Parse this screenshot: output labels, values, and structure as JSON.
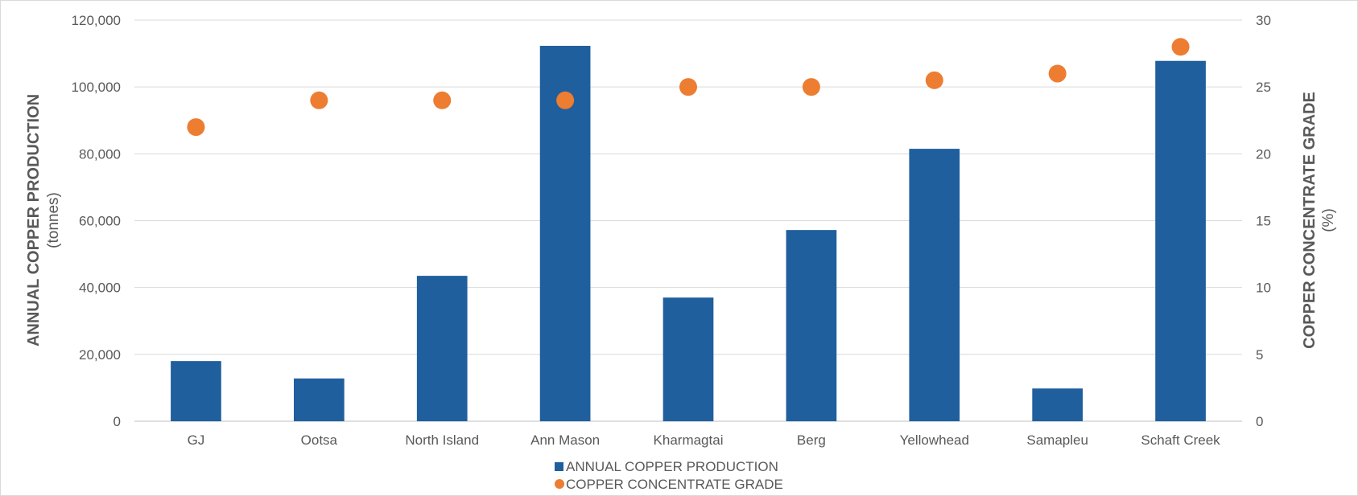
{
  "chart_data": {
    "type": "bar",
    "categories": [
      "GJ",
      "Ootsa",
      "North Island",
      "Ann Mason",
      "Kharmagtai",
      "Berg",
      "Yellowhead",
      "Samapleu",
      "Schaft Creek"
    ],
    "series": [
      {
        "name": "ANNUAL COPPER PRODUCTION",
        "kind": "bar",
        "axis": "left",
        "color": "#1f5f9e",
        "values": [
          18000,
          12800,
          43500,
          112300,
          37000,
          57200,
          81500,
          9800,
          107800
        ]
      },
      {
        "name": "COPPER CONCENTRATE GRADE",
        "kind": "scatter",
        "axis": "right",
        "color": "#ed7d31",
        "values": [
          22,
          24,
          24,
          24,
          25,
          25,
          25.5,
          26,
          28
        ]
      }
    ],
    "y_left": {
      "label": "ANNUAL  COPPER PRODUCTION",
      "unit": "(tonnes)",
      "ylim": [
        0,
        120000
      ],
      "ticks": [
        0,
        20000,
        40000,
        60000,
        80000,
        100000,
        120000
      ],
      "tick_labels": [
        "0",
        "20,000",
        "40,000",
        "60,000",
        "80,000",
        "100,000",
        "120,000"
      ]
    },
    "y_right": {
      "label": "COPPER CONCENTRATE GRADE",
      "unit": "(%)",
      "ylim": [
        0,
        30
      ],
      "ticks": [
        0,
        5,
        10,
        15,
        20,
        25,
        30
      ],
      "tick_labels": [
        "0",
        "5",
        "10",
        "15",
        "20",
        "25",
        "30"
      ]
    },
    "grid": true,
    "legend_position": "bottom-center"
  }
}
